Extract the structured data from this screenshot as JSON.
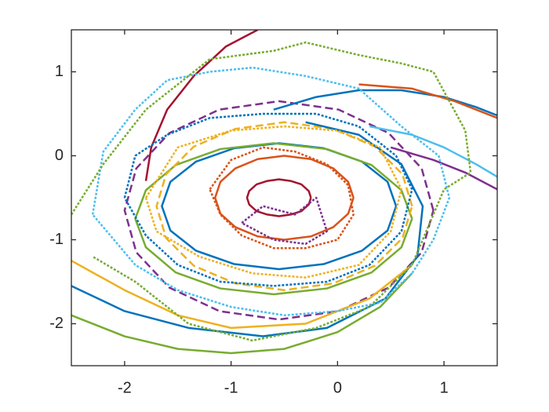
{
  "chart_data": {
    "type": "line",
    "xlim": [
      -2.5,
      1.5
    ],
    "ylim": [
      -2.5,
      1.5
    ],
    "xticks": [
      -2,
      -1,
      0,
      1
    ],
    "yticks": [
      -2,
      -1,
      0,
      1
    ],
    "box": true,
    "series": [
      {
        "color": "#A2142F",
        "style": "solid",
        "x": [
          -0.25,
          -0.27,
          -0.34,
          -0.44,
          -0.55,
          -0.66,
          -0.76,
          -0.83,
          -0.85,
          -0.83,
          -0.76,
          -0.66,
          -0.55,
          -0.44,
          -0.34,
          -0.27,
          -0.25
        ],
        "values": [
          -0.5,
          -0.42,
          -0.34,
          -0.3,
          -0.28,
          -0.3,
          -0.34,
          -0.42,
          -0.5,
          -0.58,
          -0.66,
          -0.7,
          -0.72,
          -0.7,
          -0.66,
          -0.58,
          -0.5
        ]
      },
      {
        "color": "#D95319",
        "style": "solid",
        "x": [
          0.15,
          0.1,
          -0.04,
          -0.25,
          -0.5,
          -0.75,
          -0.96,
          -1.1,
          -1.15,
          -1.1,
          -0.96,
          -0.75,
          -0.5,
          -0.25,
          -0.04,
          0.1,
          0.15
        ],
        "values": [
          -0.5,
          -0.31,
          -0.15,
          -0.04,
          0,
          -0.04,
          -0.15,
          -0.31,
          -0.5,
          -0.69,
          -0.85,
          -0.96,
          -1.0,
          -0.96,
          -0.85,
          -0.69,
          -0.5
        ]
      },
      {
        "color": "#0072BD",
        "style": "solid",
        "x": [
          0.55,
          0.47,
          0.23,
          -0.13,
          -0.55,
          -0.97,
          -1.33,
          -1.57,
          -1.65,
          -1.57,
          -1.33,
          -0.97,
          -0.55,
          -0.13,
          0.23,
          0.47,
          0.55
        ],
        "values": [
          -0.6,
          -0.31,
          -0.07,
          0.09,
          0.15,
          0.09,
          -0.07,
          -0.31,
          -0.6,
          -0.89,
          -1.13,
          -1.29,
          -1.35,
          -1.29,
          -1.13,
          -0.89,
          -0.6
        ]
      },
      {
        "color": "#77AC30",
        "style": "solid",
        "x": [
          0.7,
          0.6,
          0.32,
          -0.1,
          -0.6,
          -1.1,
          -1.52,
          -1.8,
          -1.9,
          -1.8,
          -1.52,
          -1.1,
          -0.6,
          -0.1,
          0.32,
          0.6,
          0.7
        ],
        "values": [
          -0.75,
          -0.41,
          -0.11,
          0.08,
          0.15,
          0.08,
          -0.11,
          -0.41,
          -0.75,
          -1.09,
          -1.39,
          -1.58,
          -1.65,
          -1.58,
          -1.39,
          -1.09,
          -0.75
        ]
      },
      {
        "color": "#7E2F8E",
        "style": "dashed",
        "x": [
          0.9,
          0.79,
          0.48,
          0.01,
          -0.55,
          -1.11,
          -1.58,
          -1.89,
          -2.0,
          -1.89,
          -1.58,
          -1.11,
          -0.55,
          0.01,
          0.48,
          0.79,
          0.9
        ],
        "values": [
          -0.65,
          -0.15,
          0.27,
          0.55,
          0.65,
          0.55,
          0.27,
          -0.15,
          -0.65,
          -1.15,
          -1.57,
          -1.85,
          -1.95,
          -1.85,
          -1.57,
          -1.15,
          -0.65
        ]
      },
      {
        "color": "#EDB120",
        "style": "dashed",
        "x": [
          0.7,
          0.61,
          0.35,
          -0.04,
          -0.5,
          -0.96,
          -1.35,
          -1.61,
          -1.7,
          -1.61,
          -1.35,
          -0.96,
          -0.5,
          -0.04,
          0.35,
          0.61,
          0.7
        ],
        "values": [
          -0.6,
          -0.22,
          0.11,
          0.32,
          0.4,
          0.32,
          0.11,
          -0.22,
          -0.6,
          -0.98,
          -1.31,
          -1.52,
          -1.6,
          -1.52,
          -1.31,
          -0.98,
          -0.6
        ]
      },
      {
        "color": "#0072BD",
        "style": "solid",
        "x": [
          -2.5,
          -2.0,
          -1.4,
          -0.7,
          -0.1,
          0.45,
          0.75,
          0.8,
          0.6,
          0.2,
          -0.3
        ],
        "values": [
          -1.55,
          -1.85,
          -2.05,
          -2.15,
          -2.05,
          -1.7,
          -1.2,
          -0.6,
          -0.1,
          0.25,
          0.4
        ]
      },
      {
        "color": "#0072BD",
        "style": "solid",
        "x": [
          -0.6,
          -0.2,
          0.2,
          0.6,
          1.0,
          1.3,
          1.5
        ],
        "values": [
          0.55,
          0.7,
          0.78,
          0.78,
          0.7,
          0.58,
          0.48
        ]
      },
      {
        "color": "#A2142F",
        "style": "solid",
        "x": [
          -1.8,
          -1.75,
          -1.6,
          -1.35,
          -1.05,
          -0.75
        ],
        "values": [
          -0.3,
          0.1,
          0.55,
          0.95,
          1.3,
          1.5
        ]
      },
      {
        "color": "#D95319",
        "style": "solid",
        "x": [
          0.2,
          0.7,
          1.1,
          1.5
        ],
        "values": [
          0.85,
          0.8,
          0.65,
          0.45
        ]
      },
      {
        "color": "#77AC30",
        "style": "solid",
        "x": [
          -2.5,
          -2.0,
          -1.5,
          -1.0,
          -0.5,
          0.0,
          0.4,
          0.7
        ],
        "values": [
          -1.9,
          -2.15,
          -2.3,
          -2.35,
          -2.3,
          -2.1,
          -1.8,
          -1.4
        ]
      },
      {
        "color": "#EDB120",
        "style": "solid",
        "x": [
          -2.5,
          -2.0,
          -1.5,
          -1.0,
          -0.3,
          0.3,
          0.7
        ],
        "values": [
          -1.25,
          -1.6,
          -1.9,
          -2.05,
          -2.0,
          -1.7,
          -1.3
        ]
      },
      {
        "color": "#4DBEEE",
        "style": "solid",
        "x": [
          0.3,
          0.7,
          1.0,
          1.3,
          1.5
        ],
        "values": [
          0.35,
          0.25,
          0.1,
          -0.1,
          -0.25
        ]
      },
      {
        "color": "#7E2F8E",
        "style": "solid",
        "x": [
          0.5,
          0.9,
          1.2,
          1.5
        ],
        "values": [
          0.1,
          -0.05,
          -0.2,
          -0.4
        ]
      },
      {
        "color": "#4DBEEE",
        "style": "dotted",
        "x": [
          -2.3,
          -2.2,
          -1.9,
          -1.6,
          -1.2,
          -0.8,
          -0.3,
          0.2,
          0.6,
          0.95,
          1.05,
          0.9,
          0.7,
          0.4,
          0.0,
          -0.5,
          -1.0,
          -1.5,
          -1.9,
          -2.3
        ],
        "values": [
          -0.7,
          0.05,
          0.55,
          0.9,
          1.0,
          1.05,
          0.95,
          0.8,
          0.35,
          0.0,
          -0.5,
          -1.0,
          -1.4,
          -1.75,
          -1.85,
          -1.9,
          -1.8,
          -1.6,
          -1.3,
          -0.7
        ]
      },
      {
        "color": "#77AC30",
        "style": "dotted",
        "x": [
          -2.5,
          -2.2,
          -1.8,
          -1.2,
          -0.6,
          -0.3,
          0.2,
          0.6,
          0.9,
          1.2,
          1.25,
          1.0,
          0.7,
          0.3,
          -0.2,
          -0.8,
          -1.4,
          -1.9,
          -2.3
        ],
        "values": [
          -0.7,
          -0.1,
          0.55,
          1.15,
          1.25,
          1.35,
          1.2,
          1.1,
          1.0,
          0.3,
          -0.2,
          -0.4,
          -1.3,
          -1.8,
          -2.05,
          -2.2,
          -2.0,
          -1.5,
          -1.2
        ]
      },
      {
        "color": "#0072BD",
        "style": "dotted",
        "x": [
          -2.0,
          -1.9,
          -1.6,
          -1.2,
          -0.7,
          -0.2,
          0.2,
          0.55,
          0.7,
          0.6,
          0.3,
          -0.1,
          -0.6,
          -1.1,
          -1.5,
          -1.8,
          -2.0
        ],
        "values": [
          -0.5,
          0.0,
          0.25,
          0.45,
          0.5,
          0.5,
          0.35,
          0.0,
          -0.4,
          -0.9,
          -1.3,
          -1.5,
          -1.55,
          -1.5,
          -1.3,
          -0.95,
          -0.5
        ]
      },
      {
        "color": "#D95319",
        "style": "dotted",
        "x": [
          -1.2,
          -1.0,
          -0.7,
          -0.4,
          -0.1,
          0.1,
          0.15,
          0.0,
          -0.3,
          -0.6,
          -0.9,
          -1.1,
          -1.2
        ],
        "values": [
          -0.4,
          -0.05,
          0.1,
          0.05,
          -0.1,
          -0.35,
          -0.7,
          -1.0,
          -1.1,
          -1.1,
          -0.95,
          -0.7,
          -0.4
        ]
      },
      {
        "color": "#7E2F8E",
        "style": "dotted",
        "x": [
          -0.9,
          -0.7,
          -0.4,
          -0.2,
          -0.1,
          -0.3,
          -0.6,
          -0.9
        ],
        "values": [
          -0.8,
          -0.6,
          -0.7,
          -0.5,
          -0.9,
          -1.05,
          -1.0,
          -0.8
        ]
      },
      {
        "color": "#EDB120",
        "style": "dotted",
        "x": [
          -1.8,
          -1.5,
          -1.0,
          -0.5,
          0.0,
          0.4,
          0.6,
          0.5,
          0.2,
          -0.3,
          -0.8,
          -1.3,
          -1.7,
          -1.8
        ],
        "values": [
          -0.5,
          0.1,
          0.3,
          0.35,
          0.3,
          0.1,
          -0.4,
          -0.9,
          -1.3,
          -1.45,
          -1.4,
          -1.2,
          -0.9,
          -0.5
        ]
      }
    ]
  }
}
